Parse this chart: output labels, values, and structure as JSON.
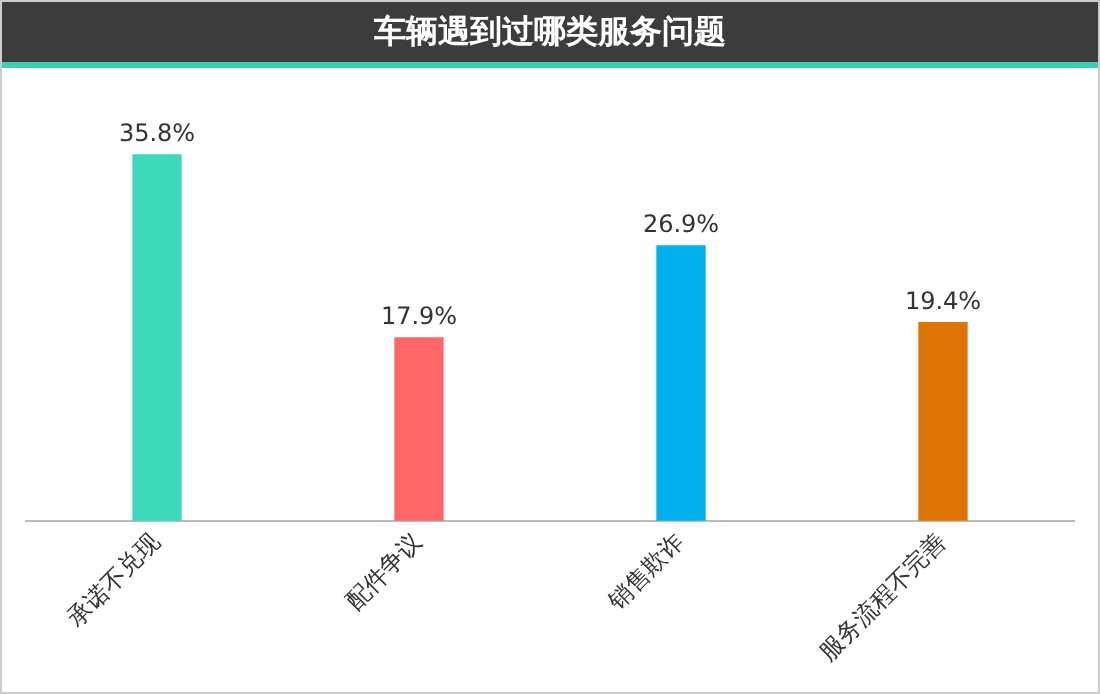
{
  "chart_data": {
    "type": "bar",
    "title": "车辆遇到过哪类服务问题",
    "categories": [
      "承诺不兑现",
      "配件争议",
      "销售欺诈",
      "服务流程不完善"
    ],
    "values": [
      35.8,
      17.9,
      26.9,
      19.4
    ],
    "colors": [
      "#3dd8b8",
      "#ff6666",
      "#00b0ec",
      "#dc7406"
    ],
    "value_labels": [
      "35.8%",
      "17.9%",
      "26.9%",
      "19.4%"
    ],
    "grid": false,
    "legend": false
  }
}
